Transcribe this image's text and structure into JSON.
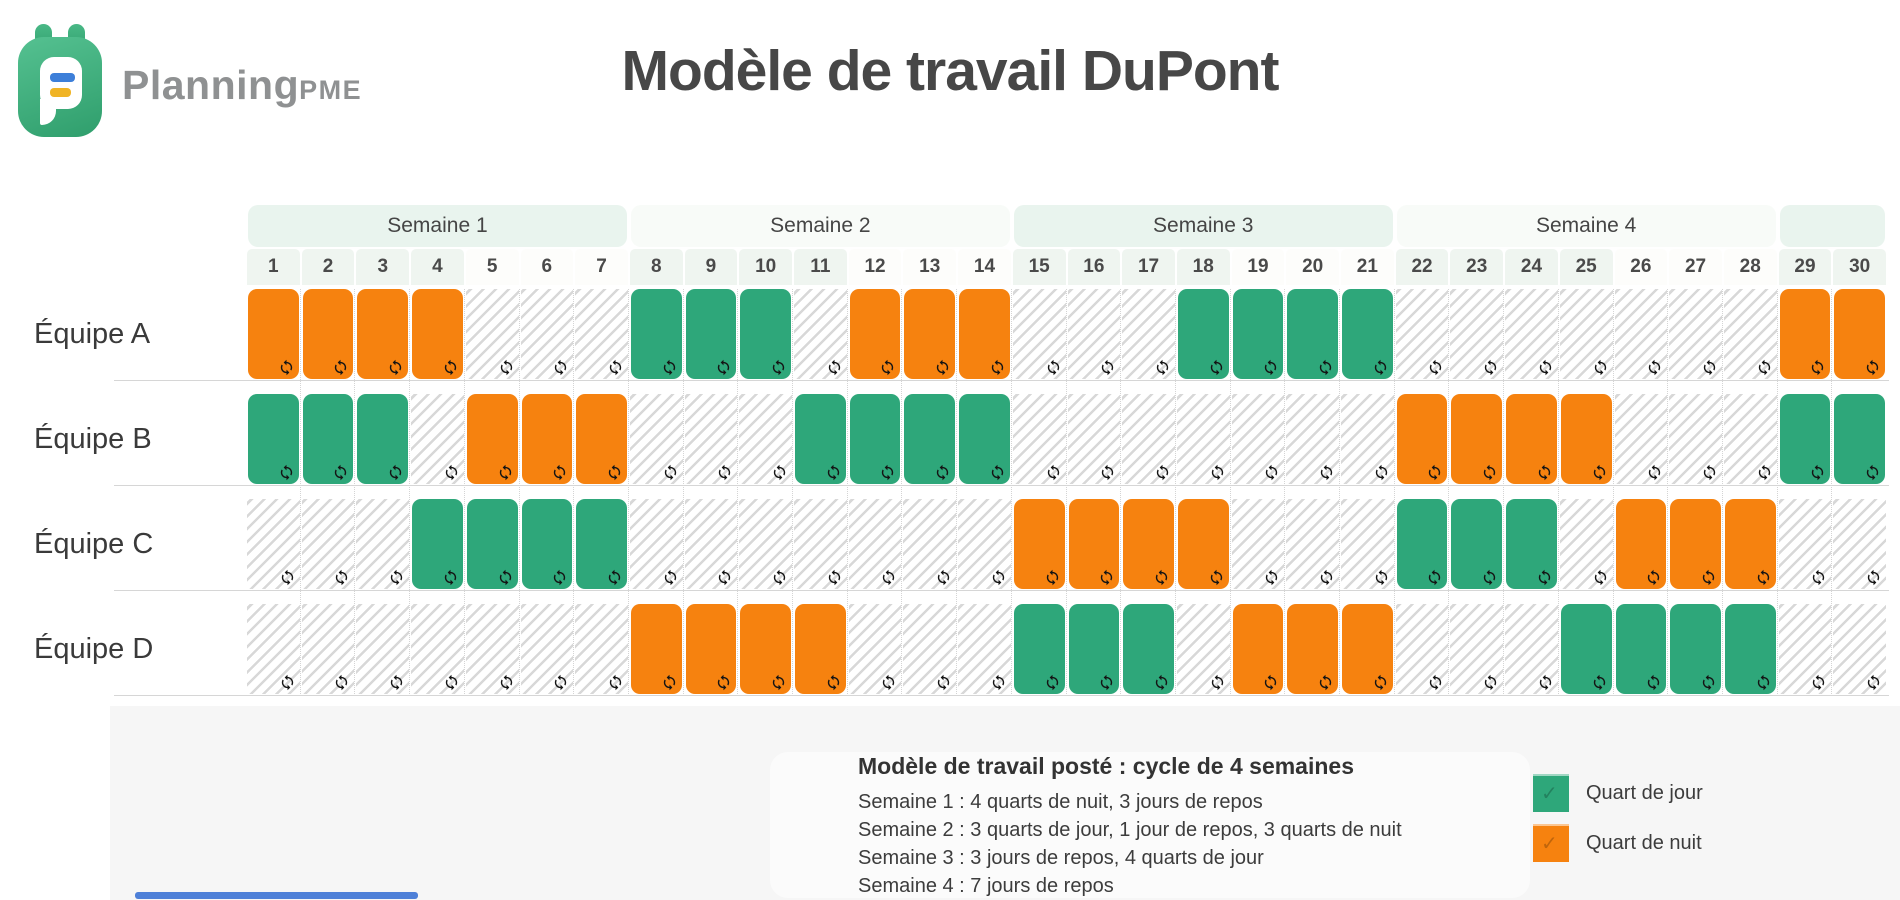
{
  "brand": {
    "name": "Planning",
    "suffix": "PME"
  },
  "title": "Modèle de travail DuPont",
  "icons": {
    "cell_badge": "repeat"
  },
  "colors": {
    "day_shift": "#2EA77A",
    "night_shift": "#F6820F",
    "week_header_tint": "#E9F4EE",
    "week_header_alt": "#F8FBF8",
    "rest_stripe": "#D8D8D8",
    "bottom_panel": "#F6F6F6",
    "scrollbar": "#4E80D8"
  },
  "chart_data": {
    "type": "table",
    "title": "Modèle de travail DuPont",
    "day_numbers": [
      1,
      2,
      3,
      4,
      5,
      6,
      7,
      8,
      9,
      10,
      11,
      12,
      13,
      14,
      15,
      16,
      17,
      18,
      19,
      20,
      21,
      22,
      23,
      24,
      25,
      26,
      27,
      28,
      29,
      30
    ],
    "weeks": [
      {
        "label": "Semaine 1",
        "span": 7
      },
      {
        "label": "Semaine 2",
        "span": 7
      },
      {
        "label": "Semaine 3",
        "span": 7
      },
      {
        "label": "Semaine 4",
        "span": 7
      },
      {
        "label": "",
        "span": 2
      }
    ],
    "shift_codes": {
      "J": "Quart de jour",
      "N": "Quart de nuit",
      "R": "Jour de repos"
    },
    "series": [
      {
        "name": "Équipe A",
        "values": "NNNNRRRJJJRNNNRRRJJJJRRRRRRRNN"
      },
      {
        "name": "Équipe B",
        "values": "JJJRNNNRRRJJJJRRRRRRRNNNNRRRJJ"
      },
      {
        "name": "Équipe C",
        "values": "RRRJJJJRRRRRRRNNNNRRRJJJRNNNRR"
      },
      {
        "name": "Équipe D",
        "values": "RRRRRRRNNNNRRRJJJRNNNRRRJJJJRR"
      }
    ]
  },
  "legend": [
    {
      "key": "J",
      "label": "Quart de jour",
      "color": "#2EA77A"
    },
    {
      "key": "N",
      "label": "Quart de nuit",
      "color": "#F6820F"
    }
  ],
  "description": {
    "heading": "Modèle de travail posté : cycle de 4 semaines",
    "lines": [
      "Semaine 1 : 4 quarts de nuit, 3 jours de repos",
      "Semaine 2 : 3 quarts de jour, 1 jour de repos, 3 quarts de nuit",
      "Semaine 3 : 3 jours de repos, 4 quarts de jour",
      "Semaine 4 : 7 jours de repos"
    ]
  }
}
